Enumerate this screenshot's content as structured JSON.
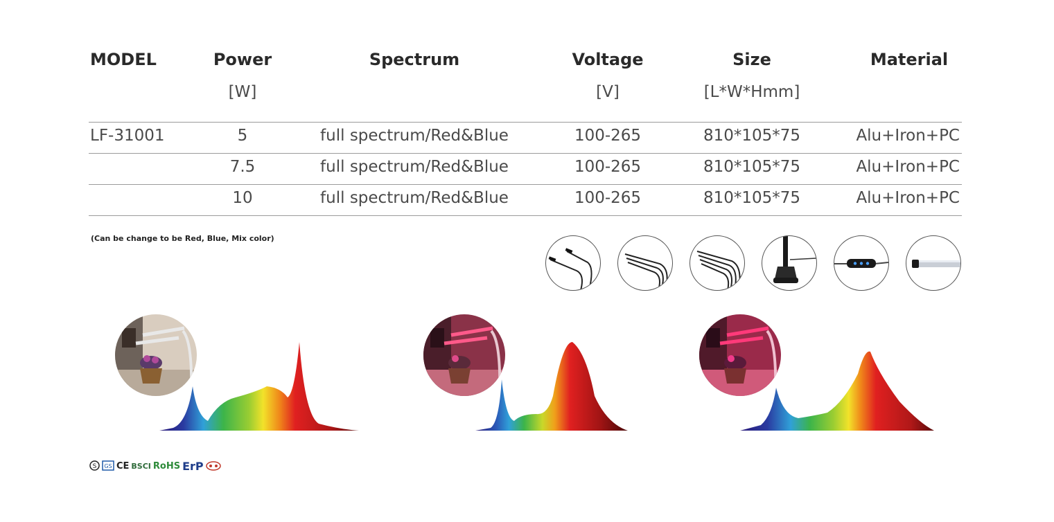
{
  "table": {
    "headers": [
      {
        "title": "MODEL",
        "unit": ""
      },
      {
        "title": "Power",
        "unit": "[W]"
      },
      {
        "title": "Spectrum",
        "unit": ""
      },
      {
        "title": "Voltage",
        "unit": "[V]"
      },
      {
        "title": "Size",
        "unit": "[L*W*Hmm]"
      },
      {
        "title": "Material",
        "unit": ""
      }
    ],
    "rows": [
      {
        "model": "LF-31001",
        "power": "5",
        "spectrum": "full spectrum/Red&Blue",
        "voltage": "100-265",
        "size": "810*105*75",
        "material": "Alu+Iron+PC"
      },
      {
        "model": "",
        "power": "7.5",
        "spectrum": "full spectrum/Red&Blue",
        "voltage": "100-265",
        "size": "810*105*75",
        "material": "Alu+Iron+PC"
      },
      {
        "model": "",
        "power": "10",
        "spectrum": "full spectrum/Red&Blue",
        "voltage": "100-265",
        "size": "810*105*75",
        "material": "Alu+Iron+PC"
      }
    ]
  },
  "note": "(Can be change to be Red, Blue, Mix color)",
  "accessories": [
    "single-head-lamp-icon",
    "dual-head-lamp-icon",
    "triple-head-lamp-icon",
    "clamp-stand-icon",
    "timer-controller-icon",
    "led-tube-icon"
  ],
  "spectra": [
    {
      "photo_tint": "#d9cdbf",
      "icon": "plant-lamp-photo"
    },
    {
      "photo_tint": "#d84a6a",
      "icon": "plant-lamp-red-photo"
    },
    {
      "photo_tint": "#c8285a",
      "icon": "plant-lamp-pink-photo"
    }
  ],
  "certifications": {
    "labels": [
      "CE",
      "BSCI",
      "RoHS",
      "ErP"
    ],
    "colors": {
      "rohs": "#2e8b3a",
      "erp": "#1f3d8a",
      "bsci": "#333333"
    }
  },
  "colors": {
    "rule": "#9a9a9a",
    "header": "#2a2a2a",
    "text": "#4a4a4a"
  }
}
